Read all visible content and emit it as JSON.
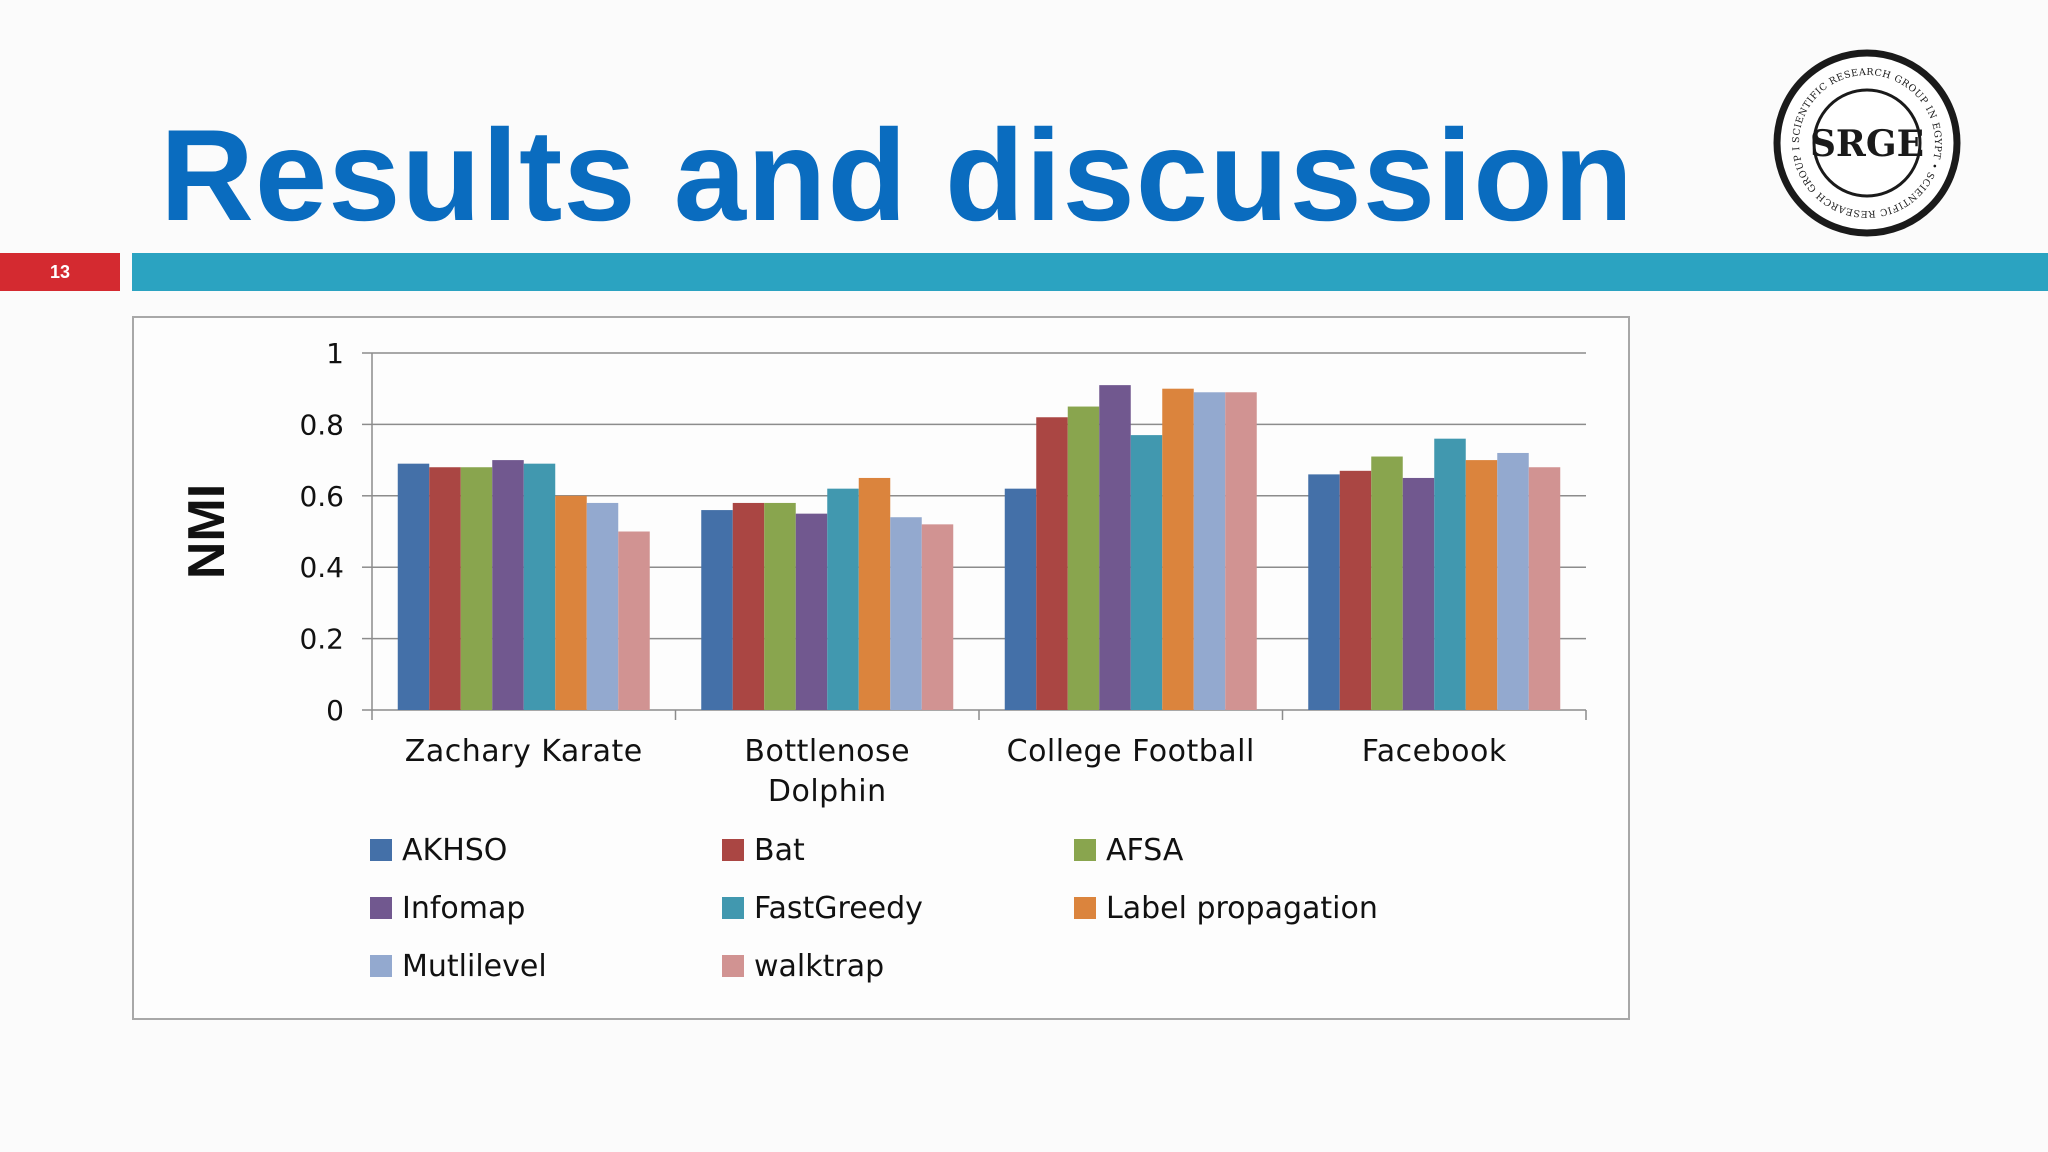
{
  "slide": {
    "title": "Results and discussion",
    "page_number": "13",
    "logo_text": "SRGE",
    "logo_ring_text": "SCIENTIFIC RESEARCH GROUP IN EGYPT • SCIENTIFIC RESEARCH GROUP IN EGYPT •"
  },
  "colors": {
    "title": "#0a6cbf",
    "page_badge": "#d42a30",
    "title_rule": "#2ba3c1"
  },
  "chart_data": {
    "type": "bar",
    "title": "",
    "xlabel": "",
    "ylabel": "NMI",
    "ylim": [
      0,
      1
    ],
    "yticks": [
      "0",
      "0.2",
      "0.4",
      "0.6",
      "0.8",
      "1"
    ],
    "grid": true,
    "legend_position": "bottom",
    "categories": [
      [
        "Zachary Karate"
      ],
      [
        "Bottlenose",
        "Dolphin"
      ],
      [
        "College Football"
      ],
      [
        "Facebook"
      ]
    ],
    "series": [
      {
        "name": "AKHSO",
        "color": "#4470a8",
        "values": [
          0.69,
          0.56,
          0.62,
          0.66
        ]
      },
      {
        "name": "Bat",
        "color": "#aa4643",
        "values": [
          0.68,
          0.58,
          0.82,
          0.67
        ]
      },
      {
        "name": "AFSA",
        "color": "#89a54e",
        "values": [
          0.68,
          0.58,
          0.85,
          0.71
        ]
      },
      {
        "name": "Infomap",
        "color": "#71588f",
        "values": [
          0.7,
          0.55,
          0.91,
          0.65
        ]
      },
      {
        "name": "FastGreedy",
        "color": "#4198af",
        "values": [
          0.69,
          0.62,
          0.77,
          0.76
        ]
      },
      {
        "name": "Label propagation",
        "color": "#db843d",
        "values": [
          0.6,
          0.65,
          0.9,
          0.7
        ]
      },
      {
        "name": "Mutlilevel",
        "color": "#93a9cf",
        "values": [
          0.58,
          0.54,
          0.89,
          0.72
        ]
      },
      {
        "name": "walktrap",
        "color": "#d19392",
        "values": [
          0.5,
          0.52,
          0.89,
          0.68
        ]
      }
    ]
  }
}
